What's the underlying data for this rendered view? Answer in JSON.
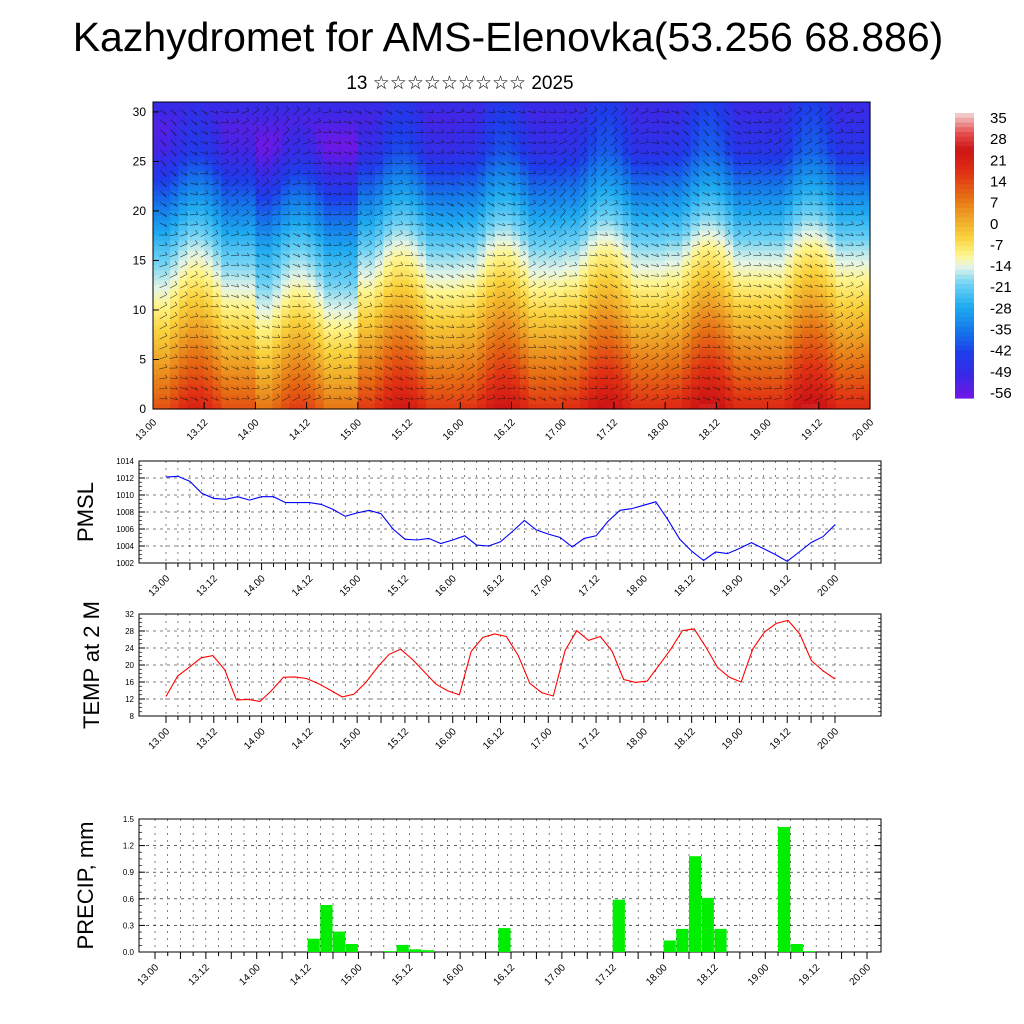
{
  "title": "Kazhydromet for AMS-Elenovka(53.256 68.886)",
  "subtitle": "13 ☆☆☆☆☆☆☆☆☆ 2025",
  "colorbar": {
    "labels": [
      "35",
      "28",
      "21",
      "14",
      "7",
      "0",
      "-7",
      "-14",
      "-21",
      "-28",
      "-35",
      "-42",
      "-49",
      "-56"
    ]
  },
  "chart_data": [
    {
      "type": "heatmap",
      "name": "cross-section",
      "x_ticks": [
        "13.00",
        "13.12",
        "14.00",
        "14.12",
        "15.00",
        "15.12",
        "16.00",
        "16.12",
        "17.00",
        "17.12",
        "18.00",
        "18.12",
        "19.00",
        "19.12",
        "20.00"
      ],
      "y_ticks": [
        "0",
        "5",
        "10",
        "15",
        "20",
        "25",
        "30"
      ],
      "ylim": [
        0,
        31
      ],
      "value_range": [
        -60,
        38
      ],
      "surface_temp_cycle": [
        22,
        22,
        17,
        25,
        26,
        27,
        28,
        28
      ]
    },
    {
      "type": "line",
      "ylabel": "PMSL",
      "ylim": [
        1002,
        1014
      ],
      "y_ticks": [
        "1014",
        "1012",
        "1010",
        "1008",
        "1006",
        "1004",
        "1002"
      ],
      "x_ticks": [
        "13.00",
        "13.12",
        "14.00",
        "14.12",
        "15.00",
        "15.12",
        "16.00",
        "16.12",
        "17.00",
        "17.12",
        "18.00",
        "18.12",
        "19.00",
        "19.12",
        "20.00"
      ],
      "color": "#0000ff",
      "values": [
        1012.1,
        1012.2,
        1011.6,
        1010.2,
        1009.6,
        1009.5,
        1009.8,
        1009.4,
        1009.8,
        1009.8,
        1009.1,
        1009.1,
        1009.1,
        1008.9,
        1008.3,
        1007.5,
        1007.9,
        1008.2,
        1007.8,
        1006.0,
        1004.8,
        1004.7,
        1004.9,
        1004.3,
        1004.7,
        1005.2,
        1004.1,
        1004.0,
        1004.5,
        1005.7,
        1007.0,
        1005.9,
        1005.4,
        1005.0,
        1003.9,
        1004.9,
        1005.2,
        1006.9,
        1008.2,
        1008.4,
        1008.8,
        1009.2,
        1007.1,
        1004.8,
        1003.4,
        1002.3,
        1003.3,
        1003.1,
        1003.7,
        1004.4,
        1003.7,
        1003.0,
        1002.2,
        1003.3,
        1004.4,
        1005.1,
        1006.5
      ]
    },
    {
      "type": "line",
      "ylabel": "TEMP at 2 M",
      "ylim": [
        8,
        32
      ],
      "y_ticks": [
        "32",
        "28",
        "24",
        "20",
        "16",
        "12",
        "8"
      ],
      "x_ticks": [
        "13.00",
        "13.12",
        "14.00",
        "14.12",
        "15.00",
        "15.12",
        "16.00",
        "16.12",
        "17.00",
        "17.12",
        "18.00",
        "18.12",
        "19.00",
        "19.12",
        "20.00"
      ],
      "color": "#ff0000",
      "values": [
        12.6,
        17.4,
        19.5,
        21.7,
        22.2,
        18.9,
        11.8,
        11.9,
        11.4,
        14.0,
        17.1,
        17.2,
        16.8,
        15.6,
        14.1,
        12.5,
        13.1,
        15.8,
        19.4,
        22.5,
        23.7,
        21.3,
        18.4,
        15.5,
        13.9,
        13.0,
        23.2,
        26.5,
        27.3,
        26.7,
        22.3,
        15.7,
        13.5,
        12.7,
        23.4,
        28.1,
        25.8,
        26.7,
        23.3,
        16.6,
        15.9,
        16.2,
        19.9,
        23.7,
        28.1,
        28.5,
        24.2,
        19.4,
        17.1,
        16.0,
        23.8,
        27.8,
        29.8,
        30.5,
        27.3,
        21.0,
        18.6,
        16.7
      ]
    },
    {
      "type": "bar",
      "ylabel": "PRECIP, mm",
      "ylim": [
        0,
        1.5
      ],
      "y_ticks": [
        "1.5",
        "1.2",
        "0.9",
        "0.6",
        "0.3",
        "0.0"
      ],
      "x_ticks": [
        "13.00",
        "13.12",
        "14.00",
        "14.12",
        "15.00",
        "15.12",
        "16.00",
        "16.12",
        "17.00",
        "17.12",
        "18.00",
        "18.12",
        "19.00",
        "19.12",
        "20.00"
      ],
      "color": "#00ee00",
      "values": [
        0,
        0,
        0,
        0,
        0,
        0,
        0,
        0,
        0,
        0,
        0,
        0,
        0.15,
        0.53,
        0.23,
        0.09,
        0,
        0,
        0.01,
        0.08,
        0.03,
        0.02,
        0,
        0,
        0,
        0,
        0,
        0.27,
        0,
        0,
        0,
        0,
        0,
        0,
        0,
        0,
        0.59,
        0,
        0,
        0,
        0.13,
        0.26,
        1.08,
        0.61,
        0.26,
        0,
        0,
        0,
        0,
        1.41,
        0.09,
        0.01,
        0,
        0,
        0,
        0,
        0
      ]
    }
  ]
}
